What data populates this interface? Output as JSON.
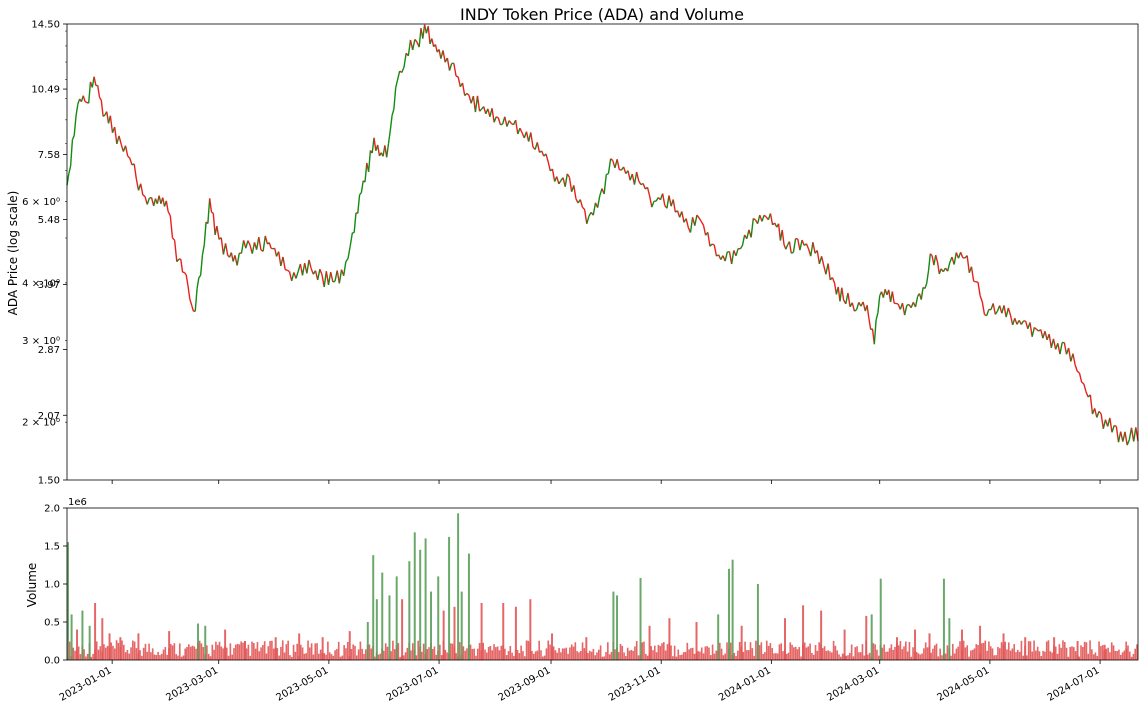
{
  "chart_data": [
    {
      "type": "line",
      "title": "INDY Token Price (ADA) and Volume",
      "ylabel": "ADA Price (log scale)",
      "yscale": "log",
      "ylim": [
        1.5,
        14.5
      ],
      "yticks": [
        "1.50",
        "2.07",
        "2.87",
        "3.97",
        "5.48",
        "7.58",
        "10.49",
        "14.50"
      ],
      "yticks_minor": [
        "2 × 10⁰",
        "3 × 10⁰",
        "4 × 10⁰",
        "6 × 10⁰"
      ],
      "xlim": [
        "2022-12-07",
        "2024-07-22"
      ],
      "up_color": "#138a13",
      "down_color": "#e8201c",
      "series": [
        {
          "x": [
            "2022-12-07",
            "2022-12-10",
            "2022-12-14",
            "2022-12-18",
            "2022-12-22",
            "2022-12-27",
            "2022-12-31",
            "2023-01-06",
            "2023-01-12",
            "2023-01-18",
            "2023-01-24",
            "2023-01-28",
            "2023-02-01",
            "2023-02-07",
            "2023-02-10",
            "2023-02-12",
            "2023-02-15",
            "2023-02-20",
            "2023-02-24",
            "2023-02-28",
            "2023-03-06",
            "2023-03-10",
            "2023-03-16",
            "2023-03-22",
            "2023-03-28",
            "2023-04-02",
            "2023-04-08",
            "2023-04-14",
            "2023-04-20",
            "2023-04-26",
            "2023-05-02",
            "2023-05-08",
            "2023-05-14",
            "2023-05-18",
            "2023-05-22",
            "2023-05-26",
            "2023-05-30",
            "2023-06-03",
            "2023-06-08",
            "2023-06-14",
            "2023-06-20",
            "2023-06-24",
            "2023-06-28",
            "2023-07-02",
            "2023-07-08",
            "2023-07-14",
            "2023-07-20",
            "2023-07-28",
            "2023-08-04",
            "2023-08-10",
            "2023-08-16",
            "2023-08-22",
            "2023-08-28",
            "2023-09-03",
            "2023-09-10",
            "2023-09-16",
            "2023-09-22",
            "2023-09-28",
            "2023-10-04",
            "2023-10-10",
            "2023-10-16",
            "2023-10-22",
            "2023-10-28",
            "2023-11-03",
            "2023-11-10",
            "2023-11-16",
            "2023-11-22",
            "2023-11-28",
            "2023-12-04",
            "2023-12-10",
            "2023-12-16",
            "2023-12-22",
            "2023-12-28",
            "2024-01-04",
            "2024-01-08",
            "2024-01-12",
            "2024-01-18",
            "2024-01-24",
            "2024-01-30",
            "2024-02-05",
            "2024-02-10",
            "2024-02-16",
            "2024-02-22",
            "2024-02-27",
            "2024-03-01",
            "2024-03-05",
            "2024-03-10",
            "2024-03-16",
            "2024-03-22",
            "2024-03-26",
            "2024-03-30",
            "2024-04-04",
            "2024-04-10",
            "2024-04-16",
            "2024-04-22",
            "2024-04-28",
            "2024-05-04",
            "2024-05-10",
            "2024-05-16",
            "2024-05-22",
            "2024-05-28",
            "2024-06-04",
            "2024-06-10",
            "2024-06-16",
            "2024-06-22",
            "2024-06-28",
            "2024-07-04",
            "2024-07-10",
            "2024-07-16",
            "2024-07-22"
          ],
          "y": [
            6.5,
            8.0,
            10.2,
            9.8,
            11.1,
            9.5,
            8.8,
            8.0,
            7.3,
            6.2,
            5.9,
            6.0,
            5.8,
            4.4,
            4.2,
            4.0,
            3.4,
            4.5,
            6.0,
            5.1,
            4.6,
            4.5,
            4.8,
            4.8,
            4.9,
            4.6,
            4.2,
            4.2,
            4.3,
            4.1,
            4.1,
            4.1,
            5.0,
            6.2,
            7.0,
            8.0,
            7.4,
            7.9,
            11.0,
            12.8,
            13.5,
            14.2,
            13.2,
            12.6,
            11.8,
            10.4,
            9.8,
            9.5,
            8.8,
            8.9,
            8.5,
            8.1,
            7.6,
            6.8,
            6.6,
            6.1,
            5.5,
            6.0,
            7.2,
            7.0,
            6.8,
            6.5,
            6.0,
            6.1,
            5.7,
            5.3,
            5.6,
            4.8,
            4.5,
            4.5,
            4.9,
            5.3,
            5.6,
            5.3,
            4.9,
            4.8,
            4.9,
            4.7,
            4.4,
            4.0,
            3.7,
            3.6,
            3.6,
            3.0,
            3.7,
            3.8,
            3.6,
            3.5,
            3.6,
            4.0,
            4.6,
            4.2,
            4.4,
            4.7,
            4.2,
            3.5,
            3.5,
            3.5,
            3.3,
            3.2,
            3.2,
            3.0,
            2.9,
            2.7,
            2.4,
            2.1,
            2.0,
            1.9,
            1.85,
            1.9
          ]
        }
      ]
    },
    {
      "type": "bar",
      "ylabel": "Volume",
      "offset_label": "1e6",
      "ylim": [
        0,
        2.0
      ],
      "yticks": [
        "0.0",
        "0.5",
        "1.0",
        "1.5",
        "2.0"
      ],
      "xlim": [
        "2022-12-07",
        "2024-07-22"
      ],
      "xticks": [
        "2023-01-01",
        "2023-03-01",
        "2023-05-01",
        "2023-07-01",
        "2023-09-01",
        "2023-11-01",
        "2024-01-01",
        "2024-03-01",
        "2024-05-01",
        "2024-07-01"
      ],
      "up_color": "#5a9e5a",
      "down_color": "#e25555",
      "bars": [
        {
          "x": "2022-12-07",
          "v": 1.55,
          "dir": "up"
        },
        {
          "x": "2022-12-09",
          "v": 0.6,
          "dir": "up"
        },
        {
          "x": "2022-12-12",
          "v": 0.4,
          "dir": "down"
        },
        {
          "x": "2022-12-15",
          "v": 0.65,
          "dir": "up"
        },
        {
          "x": "2022-12-19",
          "v": 0.45,
          "dir": "up"
        },
        {
          "x": "2022-12-22",
          "v": 0.75,
          "dir": "down"
        },
        {
          "x": "2022-12-26",
          "v": 0.55,
          "dir": "down"
        },
        {
          "x": "2022-12-30",
          "v": 0.35,
          "dir": "down"
        },
        {
          "x": "2023-01-05",
          "v": 0.3,
          "dir": "down"
        },
        {
          "x": "2023-01-15",
          "v": 0.35,
          "dir": "down"
        },
        {
          "x": "2023-02-01",
          "v": 0.38,
          "dir": "down"
        },
        {
          "x": "2023-02-10",
          "v": 0.15,
          "dir": "down"
        },
        {
          "x": "2023-02-17",
          "v": 0.48,
          "dir": "up"
        },
        {
          "x": "2023-02-21",
          "v": 0.45,
          "dir": "up"
        },
        {
          "x": "2023-03-04",
          "v": 0.4,
          "dir": "down"
        },
        {
          "x": "2023-03-15",
          "v": 0.25,
          "dir": "down"
        },
        {
          "x": "2023-04-01",
          "v": 0.3,
          "dir": "down"
        },
        {
          "x": "2023-04-14",
          "v": 0.35,
          "dir": "down"
        },
        {
          "x": "2023-04-27",
          "v": 0.3,
          "dir": "down"
        },
        {
          "x": "2023-05-12",
          "v": 0.38,
          "dir": "down"
        },
        {
          "x": "2023-05-22",
          "v": 0.5,
          "dir": "up"
        },
        {
          "x": "2023-05-25",
          "v": 1.38,
          "dir": "up"
        },
        {
          "x": "2023-05-27",
          "v": 0.8,
          "dir": "up"
        },
        {
          "x": "2023-05-30",
          "v": 1.15,
          "dir": "up"
        },
        {
          "x": "2023-06-03",
          "v": 0.85,
          "dir": "up"
        },
        {
          "x": "2023-06-07",
          "v": 1.1,
          "dir": "up"
        },
        {
          "x": "2023-06-10",
          "v": 0.8,
          "dir": "down"
        },
        {
          "x": "2023-06-14",
          "v": 1.3,
          "dir": "up"
        },
        {
          "x": "2023-06-17",
          "v": 1.68,
          "dir": "up"
        },
        {
          "x": "2023-06-20",
          "v": 1.45,
          "dir": "up"
        },
        {
          "x": "2023-06-23",
          "v": 1.6,
          "dir": "up"
        },
        {
          "x": "2023-06-26",
          "v": 0.9,
          "dir": "up"
        },
        {
          "x": "2023-06-30",
          "v": 1.1,
          "dir": "up"
        },
        {
          "x": "2023-07-03",
          "v": 0.65,
          "dir": "down"
        },
        {
          "x": "2023-07-06",
          "v": 1.62,
          "dir": "up"
        },
        {
          "x": "2023-07-09",
          "v": 0.7,
          "dir": "down"
        },
        {
          "x": "2023-07-11",
          "v": 1.93,
          "dir": "up"
        },
        {
          "x": "2023-07-13",
          "v": 0.9,
          "dir": "up"
        },
        {
          "x": "2023-07-17",
          "v": 1.4,
          "dir": "up"
        },
        {
          "x": "2023-07-24",
          "v": 0.75,
          "dir": "down"
        },
        {
          "x": "2023-08-05",
          "v": 0.75,
          "dir": "down"
        },
        {
          "x": "2023-08-12",
          "v": 0.7,
          "dir": "down"
        },
        {
          "x": "2023-08-20",
          "v": 0.8,
          "dir": "down"
        },
        {
          "x": "2023-09-01",
          "v": 0.35,
          "dir": "down"
        },
        {
          "x": "2023-09-20",
          "v": 0.3,
          "dir": "down"
        },
        {
          "x": "2023-10-05",
          "v": 0.9,
          "dir": "up"
        },
        {
          "x": "2023-10-07",
          "v": 0.85,
          "dir": "up"
        },
        {
          "x": "2023-10-20",
          "v": 1.08,
          "dir": "up"
        },
        {
          "x": "2023-10-25",
          "v": 0.45,
          "dir": "down"
        },
        {
          "x": "2023-11-05",
          "v": 0.55,
          "dir": "down"
        },
        {
          "x": "2023-11-20",
          "v": 0.5,
          "dir": "down"
        },
        {
          "x": "2023-12-02",
          "v": 0.6,
          "dir": "up"
        },
        {
          "x": "2023-12-08",
          "v": 1.2,
          "dir": "up"
        },
        {
          "x": "2023-12-10",
          "v": 1.32,
          "dir": "up"
        },
        {
          "x": "2023-12-15",
          "v": 0.45,
          "dir": "down"
        },
        {
          "x": "2023-12-24",
          "v": 1.0,
          "dir": "up"
        },
        {
          "x": "2024-01-08",
          "v": 0.55,
          "dir": "down"
        },
        {
          "x": "2024-01-18",
          "v": 0.72,
          "dir": "down"
        },
        {
          "x": "2024-01-28",
          "v": 0.65,
          "dir": "down"
        },
        {
          "x": "2024-02-10",
          "v": 0.4,
          "dir": "down"
        },
        {
          "x": "2024-02-22",
          "v": 0.58,
          "dir": "down"
        },
        {
          "x": "2024-02-25",
          "v": 0.6,
          "dir": "up"
        },
        {
          "x": "2024-03-01",
          "v": 1.07,
          "dir": "up"
        },
        {
          "x": "2024-03-10",
          "v": 0.3,
          "dir": "down"
        },
        {
          "x": "2024-03-20",
          "v": 0.4,
          "dir": "down"
        },
        {
          "x": "2024-03-28",
          "v": 0.35,
          "dir": "down"
        },
        {
          "x": "2024-04-05",
          "v": 1.07,
          "dir": "up"
        },
        {
          "x": "2024-04-08",
          "v": 0.55,
          "dir": "up"
        },
        {
          "x": "2024-04-15",
          "v": 0.4,
          "dir": "down"
        },
        {
          "x": "2024-04-25",
          "v": 0.45,
          "dir": "down"
        },
        {
          "x": "2024-05-08",
          "v": 0.35,
          "dir": "down"
        },
        {
          "x": "2024-05-20",
          "v": 0.3,
          "dir": "down"
        },
        {
          "x": "2024-06-05",
          "v": 0.3,
          "dir": "down"
        },
        {
          "x": "2024-06-18",
          "v": 0.25,
          "dir": "down"
        },
        {
          "x": "2024-07-03",
          "v": 0.2,
          "dir": "down"
        },
        {
          "x": "2024-07-15",
          "v": 0.15,
          "dir": "down"
        }
      ]
    }
  ]
}
